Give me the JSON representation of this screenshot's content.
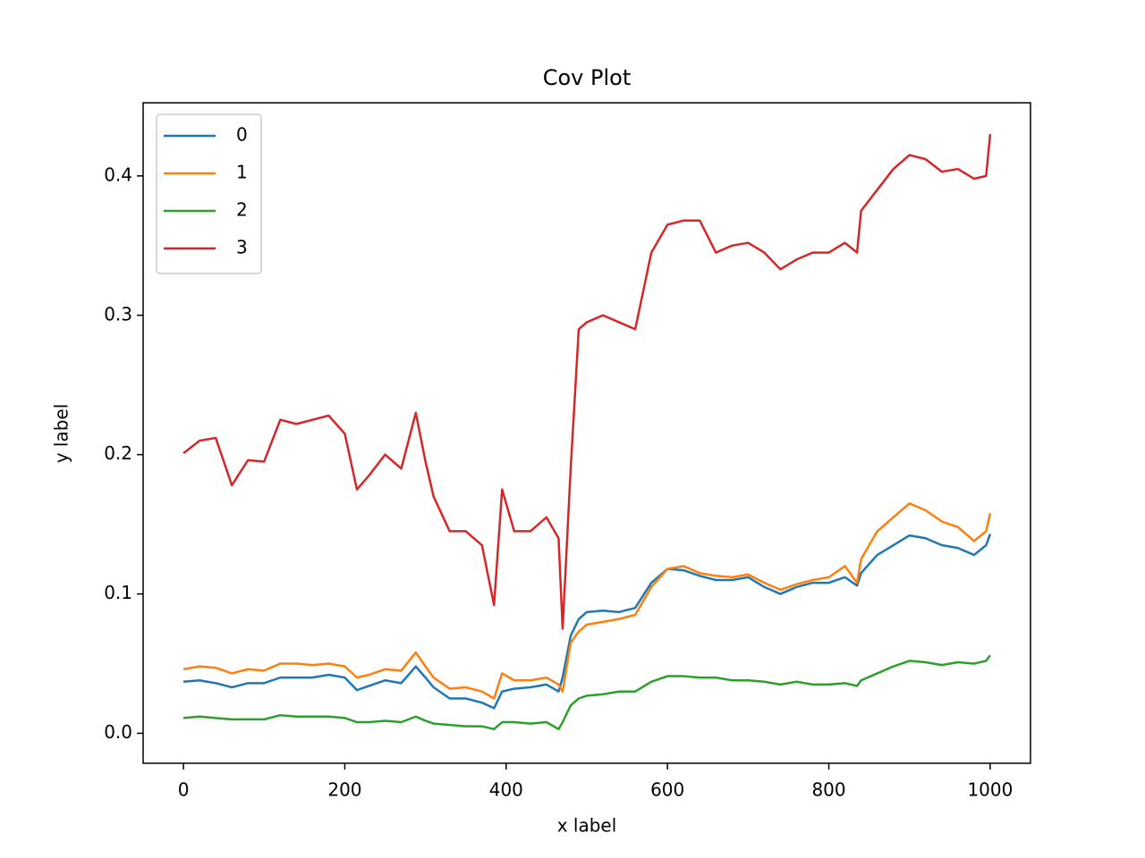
{
  "chart_data": {
    "type": "line",
    "title": "Cov Plot",
    "x_label": "x label",
    "y_label": "y label",
    "x": [
      0,
      20,
      40,
      60,
      80,
      100,
      120,
      140,
      160,
      180,
      200,
      215,
      230,
      250,
      270,
      288,
      300,
      310,
      330,
      350,
      370,
      385,
      395,
      410,
      430,
      450,
      465,
      470,
      480,
      490,
      500,
      520,
      540,
      560,
      580,
      600,
      620,
      640,
      660,
      680,
      700,
      720,
      740,
      760,
      780,
      800,
      820,
      835,
      840,
      860,
      880,
      900,
      920,
      940,
      960,
      980,
      995,
      1000
    ],
    "series": [
      {
        "name": "0",
        "color": "#1f77b4",
        "values": [
          0.037,
          0.038,
          0.036,
          0.033,
          0.036,
          0.036,
          0.04,
          0.04,
          0.04,
          0.042,
          0.04,
          0.031,
          0.034,
          0.038,
          0.036,
          0.048,
          0.04,
          0.033,
          0.025,
          0.025,
          0.022,
          0.018,
          0.03,
          0.032,
          0.033,
          0.035,
          0.03,
          0.04,
          0.07,
          0.082,
          0.087,
          0.088,
          0.087,
          0.09,
          0.108,
          0.118,
          0.117,
          0.113,
          0.11,
          0.11,
          0.112,
          0.105,
          0.1,
          0.105,
          0.108,
          0.108,
          0.112,
          0.106,
          0.115,
          0.128,
          0.135,
          0.142,
          0.14,
          0.135,
          0.133,
          0.128,
          0.135,
          0.143
        ]
      },
      {
        "name": "1",
        "color": "#ff7f0e",
        "values": [
          0.046,
          0.048,
          0.047,
          0.043,
          0.046,
          0.045,
          0.05,
          0.05,
          0.049,
          0.05,
          0.048,
          0.04,
          0.042,
          0.046,
          0.045,
          0.058,
          0.048,
          0.04,
          0.032,
          0.033,
          0.03,
          0.025,
          0.043,
          0.038,
          0.038,
          0.04,
          0.035,
          0.03,
          0.065,
          0.073,
          0.078,
          0.08,
          0.082,
          0.085,
          0.105,
          0.118,
          0.12,
          0.115,
          0.113,
          0.112,
          0.114,
          0.108,
          0.103,
          0.107,
          0.11,
          0.112,
          0.12,
          0.108,
          0.125,
          0.145,
          0.155,
          0.165,
          0.16,
          0.152,
          0.148,
          0.138,
          0.145,
          0.158
        ]
      },
      {
        "name": "2",
        "color": "#2ca02c",
        "values": [
          0.011,
          0.012,
          0.011,
          0.01,
          0.01,
          0.01,
          0.013,
          0.012,
          0.012,
          0.012,
          0.011,
          0.008,
          0.008,
          0.009,
          0.008,
          0.012,
          0.009,
          0.007,
          0.006,
          0.005,
          0.005,
          0.003,
          0.008,
          0.008,
          0.007,
          0.008,
          0.003,
          0.008,
          0.02,
          0.025,
          0.027,
          0.028,
          0.03,
          0.03,
          0.037,
          0.041,
          0.041,
          0.04,
          0.04,
          0.038,
          0.038,
          0.037,
          0.035,
          0.037,
          0.035,
          0.035,
          0.036,
          0.034,
          0.038,
          0.043,
          0.048,
          0.052,
          0.051,
          0.049,
          0.051,
          0.05,
          0.052,
          0.056
        ]
      },
      {
        "name": "3",
        "color": "#d62728",
        "values": [
          0.201,
          0.21,
          0.212,
          0.178,
          0.196,
          0.195,
          0.225,
          0.222,
          0.225,
          0.228,
          0.215,
          0.175,
          0.185,
          0.2,
          0.19,
          0.23,
          0.195,
          0.17,
          0.145,
          0.145,
          0.135,
          0.092,
          0.175,
          0.145,
          0.145,
          0.155,
          0.14,
          0.075,
          0.19,
          0.29,
          0.295,
          0.3,
          0.295,
          0.29,
          0.345,
          0.365,
          0.368,
          0.368,
          0.345,
          0.35,
          0.352,
          0.345,
          0.333,
          0.34,
          0.345,
          0.345,
          0.352,
          0.345,
          0.375,
          0.39,
          0.405,
          0.415,
          0.412,
          0.403,
          0.405,
          0.398,
          0.4,
          0.43
        ]
      }
    ],
    "xlim": [
      -50,
      1050
    ],
    "xticks": [
      0,
      200,
      400,
      600,
      800,
      1000
    ],
    "ylim": [
      -0.0215,
      0.4525
    ],
    "yticks": [
      {
        "value": 0,
        "label": "0.0"
      },
      0.1,
      0.2,
      0.3,
      0.4
    ],
    "grid": false,
    "legend": "upper left"
  }
}
